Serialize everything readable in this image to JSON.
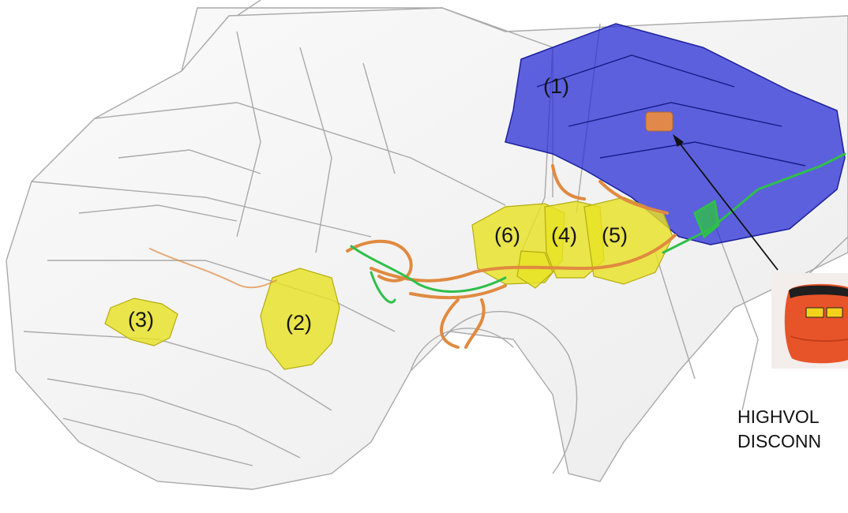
{
  "callouts": {
    "c1": "(1)",
    "c2": "(2)",
    "c3": "(3)",
    "c4": "(4)",
    "c5": "(5)",
    "c6": "(6)"
  },
  "caption": {
    "line1": "HIGHVOL",
    "line2": "DISCONN"
  },
  "icons": {
    "vehicle": "car-wireframe-icon",
    "battery": "battery-pack-icon",
    "disconnect": "service-disconnect-plug-icon"
  },
  "colors": {
    "battery": "#2a2fd6",
    "components": "#e8e224",
    "hv_cable": "#e08a40",
    "lv_cable": "#2fbf4a",
    "disconnect_plug": "#e8542a"
  }
}
